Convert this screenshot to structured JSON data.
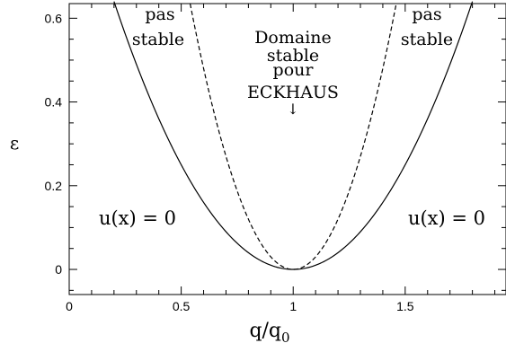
{
  "chart_data": {
    "type": "line",
    "xlabel": "q/q",
    "xlabel_subscript": "0",
    "ylabel": "ε",
    "xlim": [
      0,
      1.95
    ],
    "ylim": [
      -0.06,
      0.635
    ],
    "x_ticks": [
      {
        "value": 0,
        "label": "0"
      },
      {
        "value": 0.5,
        "label": "0.5"
      },
      {
        "value": 1,
        "label": "1"
      },
      {
        "value": 1.5,
        "label": "1.5"
      }
    ],
    "y_ticks": [
      {
        "value": 0,
        "label": "0"
      },
      {
        "value": 0.2,
        "label": "0.2"
      },
      {
        "value": 0.4,
        "label": "0.4"
      },
      {
        "value": 0.6,
        "label": "0.6"
      }
    ],
    "series": [
      {
        "style": "solid",
        "formula": "epsilon = (q - 1)^2",
        "x_range": [
          0.2,
          1.8
        ]
      },
      {
        "style": "dashed",
        "formula": "epsilon = 3 (q - 1)^2",
        "x_range": [
          0.54,
          1.46
        ]
      }
    ],
    "annotations": {
      "left_top": [
        "pas",
        "stable"
      ],
      "right_top": [
        "pas",
        "stable"
      ],
      "center": [
        "Domaine",
        "stable",
        "pour",
        "ECKHAUS"
      ],
      "center_arrow": "↓",
      "left_bottom": "u(x) = 0",
      "right_bottom": "u(x) = 0"
    }
  }
}
